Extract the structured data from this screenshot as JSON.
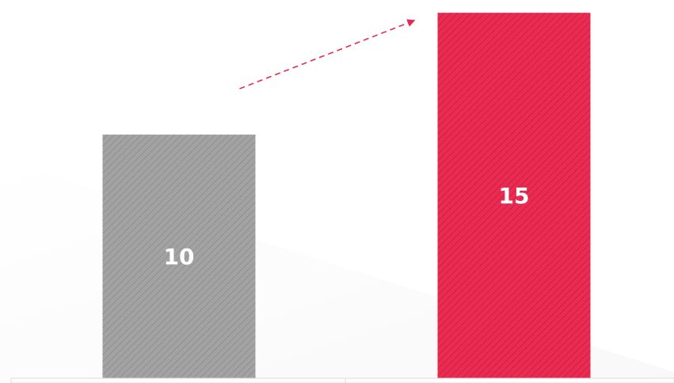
{
  "chart_data": {
    "type": "bar",
    "categories": [
      "",
      ""
    ],
    "values": [
      10,
      15
    ],
    "data_labels": [
      "10",
      "15"
    ],
    "colors": [
      "#9e9e9e",
      "#e8294f"
    ],
    "ylim": [
      0,
      15.2
    ],
    "grid": false,
    "legend": "none",
    "annotation": "dashed-arrow-up-right",
    "arrow_color": "#e8294f"
  }
}
